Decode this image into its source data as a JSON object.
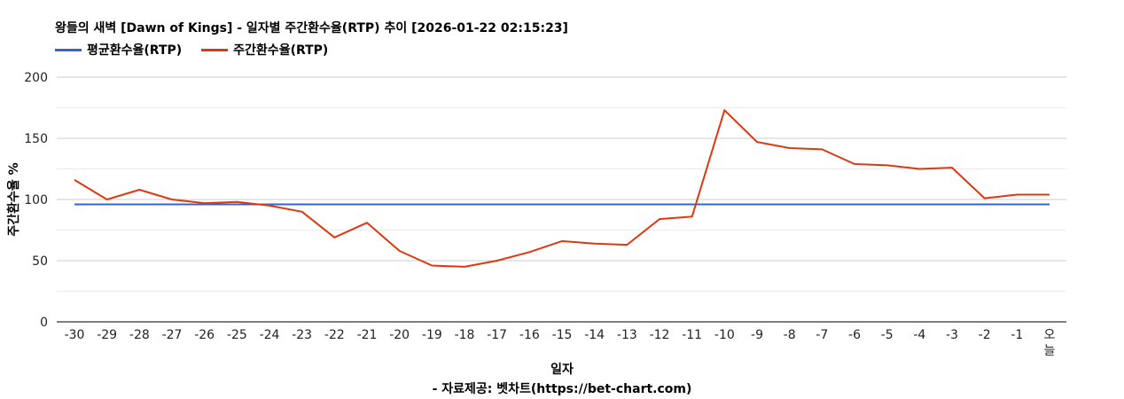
{
  "chart_data": {
    "type": "line",
    "title": "왕들의 새벽 [Dawn of Kings] - 일자별 주간환수율(RTP) 추이 [2026-01-22 02:15:23]",
    "xlabel": "일자",
    "ylabel": "주간환수율 %",
    "source": "- 자료제공: 벳차트(https://bet-chart.com)",
    "ylim": [
      0,
      200
    ],
    "yticks": [
      "0",
      "50",
      "100",
      "150",
      "200"
    ],
    "grid": true,
    "legend_position": "top-left",
    "categories": [
      "-30",
      "-29",
      "-28",
      "-27",
      "-26",
      "-25",
      "-24",
      "-23",
      "-22",
      "-21",
      "-20",
      "-19",
      "-18",
      "-17",
      "-16",
      "-15",
      "-14",
      "-13",
      "-12",
      "-11",
      "-10",
      "-9",
      "-8",
      "-7",
      "-6",
      "-5",
      "-4",
      "-3",
      "-2",
      "-1",
      "오늘"
    ],
    "series": [
      {
        "name": "평균환수율(RTP)",
        "color": "#3366cc",
        "values": [
          96,
          96,
          96,
          96,
          96,
          96,
          96,
          96,
          96,
          96,
          96,
          96,
          96,
          96,
          96,
          96,
          96,
          96,
          96,
          96,
          96,
          96,
          96,
          96,
          96,
          96,
          96,
          96,
          96,
          96,
          96
        ]
      },
      {
        "name": "주간환수율(RTP)",
        "color": "#dc3912",
        "values": [
          116,
          100,
          108,
          100,
          97,
          98,
          95,
          90,
          69,
          81,
          58,
          46,
          45,
          50,
          57,
          66,
          64,
          63,
          84,
          86,
          173,
          147,
          142,
          141,
          129,
          128,
          125,
          126,
          101,
          104,
          104
        ]
      }
    ]
  }
}
